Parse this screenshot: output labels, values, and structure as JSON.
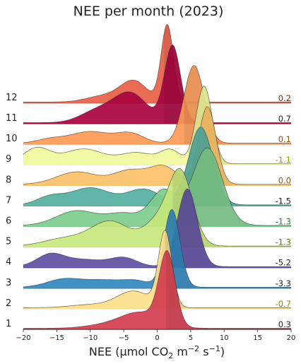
{
  "chart_data": {
    "type": "area",
    "title": "NEE per month (2023)",
    "xlabel": {
      "pre": "NEE (μmol CO",
      "sub": "2",
      "mid": " m",
      "sup1": "−2",
      "mid2": " s",
      "sup2": "−1",
      "post": ")"
    },
    "xlim": [
      -20,
      20
    ],
    "xticks": [
      "−20",
      "−15",
      "−10",
      "−5",
      "0",
      "5",
      "10",
      "15",
      "20"
    ],
    "xtick_values": [
      -20,
      -15,
      -10,
      -5,
      0,
      5,
      10,
      15,
      20
    ],
    "series": [
      {
        "name": "1",
        "median": 1.3,
        "median_label": "0.3",
        "color": "#d53e4f",
        "label_color": "#222222",
        "components": [
          [
            1.5,
            1.2,
            1.0
          ],
          [
            -2.5,
            3.0,
            0.22
          ],
          [
            -8,
            3,
            0.04
          ]
        ]
      },
      {
        "name": "2",
        "median": 1.2,
        "median_label": "-0.7",
        "color": "#fee08b",
        "label_color": "#9a8a00",
        "components": [
          [
            1.2,
            1.0,
            1.0
          ],
          [
            -3.5,
            2.5,
            0.22
          ],
          [
            -10,
            3,
            0.04
          ]
        ]
      },
      {
        "name": "3",
        "median": 0.5,
        "median_label": "-3.3",
        "color": "#3288bd",
        "label_color": "#222222",
        "components": [
          [
            2.2,
            1.2,
            1.0
          ],
          [
            -14,
            2.5,
            0.1
          ],
          [
            -8,
            3,
            0.09
          ],
          [
            -3,
            2,
            0.07
          ]
        ]
      },
      {
        "name": "4",
        "median": 0.2,
        "median_label": "-5.2",
        "color": "#5e4fa2",
        "label_color": "#222222",
        "components": [
          [
            4.5,
            1.5,
            1.0
          ],
          [
            -16,
            2,
            0.15
          ],
          [
            -11,
            3,
            0.09
          ],
          [
            -5,
            2,
            0.11
          ]
        ]
      },
      {
        "name": "5",
        "median": 2.3,
        "median_label": "-1.3",
        "color": "#c7e77c",
        "label_color": "#5a7d00",
        "components": [
          [
            3.5,
            1.8,
            1.0
          ],
          [
            -7,
            3,
            0.34
          ],
          [
            0,
            2,
            0.3
          ],
          [
            -14,
            3,
            0.1
          ]
        ]
      },
      {
        "name": "6",
        "median": 2.3,
        "median_label": "-1.3",
        "color": "#7fcc8e",
        "label_color": "#2e7d32",
        "components": [
          [
            7.5,
            2.2,
            1.0
          ],
          [
            1,
            2,
            0.45
          ],
          [
            -12,
            3,
            0.19
          ],
          [
            -5,
            2.5,
            0.15
          ]
        ]
      },
      {
        "name": "7",
        "median": 2.4,
        "median_label": "-1.5",
        "color": "#55b0a1",
        "label_color": "#222222",
        "components": [
          [
            6.5,
            1.8,
            1.0
          ],
          [
            -10,
            3,
            0.22
          ],
          [
            -2,
            2.5,
            0.2
          ],
          [
            -16,
            2,
            0.1
          ]
        ]
      },
      {
        "name": "8",
        "median": 4.0,
        "median_label": "0.0",
        "color": "#fdc168",
        "label_color": "#9a5a00",
        "components": [
          [
            7.5,
            1.3,
            1.0
          ],
          [
            -12,
            3,
            0.16
          ],
          [
            -4,
            2.5,
            0.18
          ],
          [
            1,
            2,
            0.22
          ]
        ]
      },
      {
        "name": "9",
        "median": 4.7,
        "median_label": "-1.1",
        "color": "#f2f79c",
        "label_color": "#9aa400",
        "components": [
          [
            7,
            1.2,
            1.0
          ],
          [
            -18,
            2,
            0.2
          ],
          [
            -11,
            3,
            0.19
          ],
          [
            -3,
            2.5,
            0.14
          ],
          [
            2,
            1.5,
            0.17
          ]
        ]
      },
      {
        "name": "10",
        "median": 4.0,
        "median_label": "0.1",
        "color": "#fd9a56",
        "label_color": "#9a4a00",
        "components": [
          [
            5.5,
            1.5,
            1.0
          ],
          [
            -10,
            3,
            0.15
          ],
          [
            -4,
            2,
            0.12
          ],
          [
            -16,
            2,
            0.05
          ]
        ]
      },
      {
        "name": "11",
        "median": 1.0,
        "median_label": "0.7",
        "color": "#a8033f",
        "label_color": "#222222",
        "components": [
          [
            2.3,
            1.2,
            1.0
          ],
          [
            -4,
            2.5,
            0.38
          ],
          [
            -9,
            2.5,
            0.15
          ]
        ]
      },
      {
        "name": "12",
        "median": 1.0,
        "median_label": "0.2",
        "color": "#e85f45",
        "label_color": "#7a2a00",
        "components": [
          [
            1.5,
            0.9,
            1.0
          ],
          [
            -3.5,
            2.0,
            0.27
          ],
          [
            -8,
            2.5,
            0.08
          ]
        ]
      }
    ]
  }
}
